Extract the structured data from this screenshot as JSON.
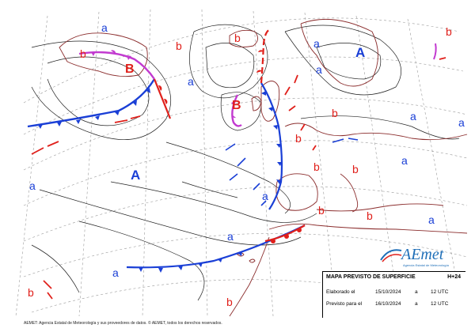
{
  "map": {
    "high_label": "A",
    "low_label": "B",
    "weak_high_label": "a",
    "weak_low_label": "b",
    "centers": [
      {
        "type": "A",
        "kind": "high",
        "lon": -42,
        "lat": 42
      },
      {
        "type": "A",
        "kind": "high",
        "lon": 28,
        "lat": 61
      },
      {
        "type": "B",
        "kind": "low",
        "lon": -40,
        "lat": 62
      },
      {
        "type": "B",
        "kind": "low",
        "lon": -15,
        "lat": 54
      }
    ]
  },
  "colors": {
    "cold_front": "#1a3fd6",
    "warm_front": "#e0201b",
    "occluded_front": "#c23ad0",
    "high": "#1a3fd6",
    "low": "#e0201b",
    "coast": "#8b2d2d",
    "isobar": "#222222",
    "graticule": "#9a9a9a"
  },
  "logo": {
    "text": "AEmet",
    "subtitle": "Agencia Estatal de Meteorología"
  },
  "info": {
    "title": "MAPA PREVISTO DE SUPERFICIE",
    "forecast_hour": "H+24",
    "elaborated_label": "Elaborado el",
    "elaborated_date": "15/10/2024",
    "elaborated_at": "a",
    "elaborated_time": "12 UTC",
    "valid_label": "Previsto para el",
    "valid_date": "16/10/2024",
    "valid_at": "a",
    "valid_time": "12 UTC"
  },
  "footer": "AEMET: Agencia Estatal de Meteorología y sus proveedores de datos. © AEMET, todos los derechos reservados."
}
